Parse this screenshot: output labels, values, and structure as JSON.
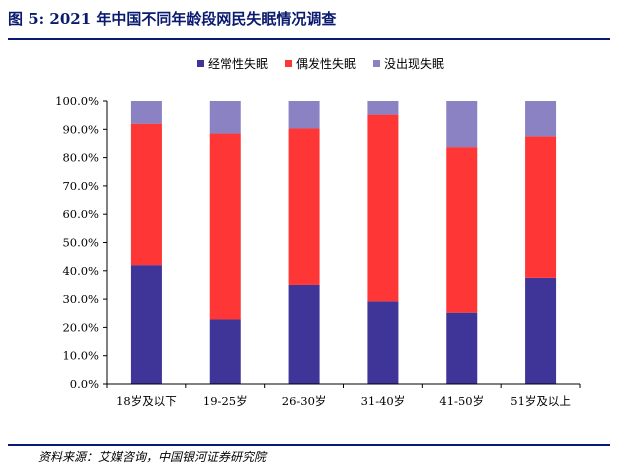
{
  "figure": {
    "title": "图 5:  2021 年中国不同年龄段网民失眠情况调查",
    "source": "资料来源：艾媒咨询，中国银河证券研究院"
  },
  "chart_data": {
    "type": "bar",
    "stacked": true,
    "categories": [
      "18岁及以下",
      "19-25岁",
      "26-30岁",
      "31-40岁",
      "41-50岁",
      "51岁及以上"
    ],
    "series": [
      {
        "name": "经常性失眠",
        "color": "#3f3497",
        "values": [
          42.0,
          22.8,
          35.0,
          29.2,
          25.2,
          37.5
        ]
      },
      {
        "name": "偶发性失眠",
        "color": "#ff3636",
        "values": [
          50.0,
          65.7,
          55.3,
          66.0,
          58.5,
          50.0
        ]
      },
      {
        "name": "没出现失眠",
        "color": "#8b82c4",
        "values": [
          8.0,
          11.5,
          9.7,
          4.8,
          16.3,
          12.5
        ]
      }
    ],
    "ylim": [
      0,
      100
    ],
    "yticks": [
      "0.0%",
      "10.0%",
      "20.0%",
      "30.0%",
      "40.0%",
      "50.0%",
      "60.0%",
      "70.0%",
      "80.0%",
      "90.0%",
      "100.0%"
    ],
    "legend_position": "top",
    "grid": false
  }
}
